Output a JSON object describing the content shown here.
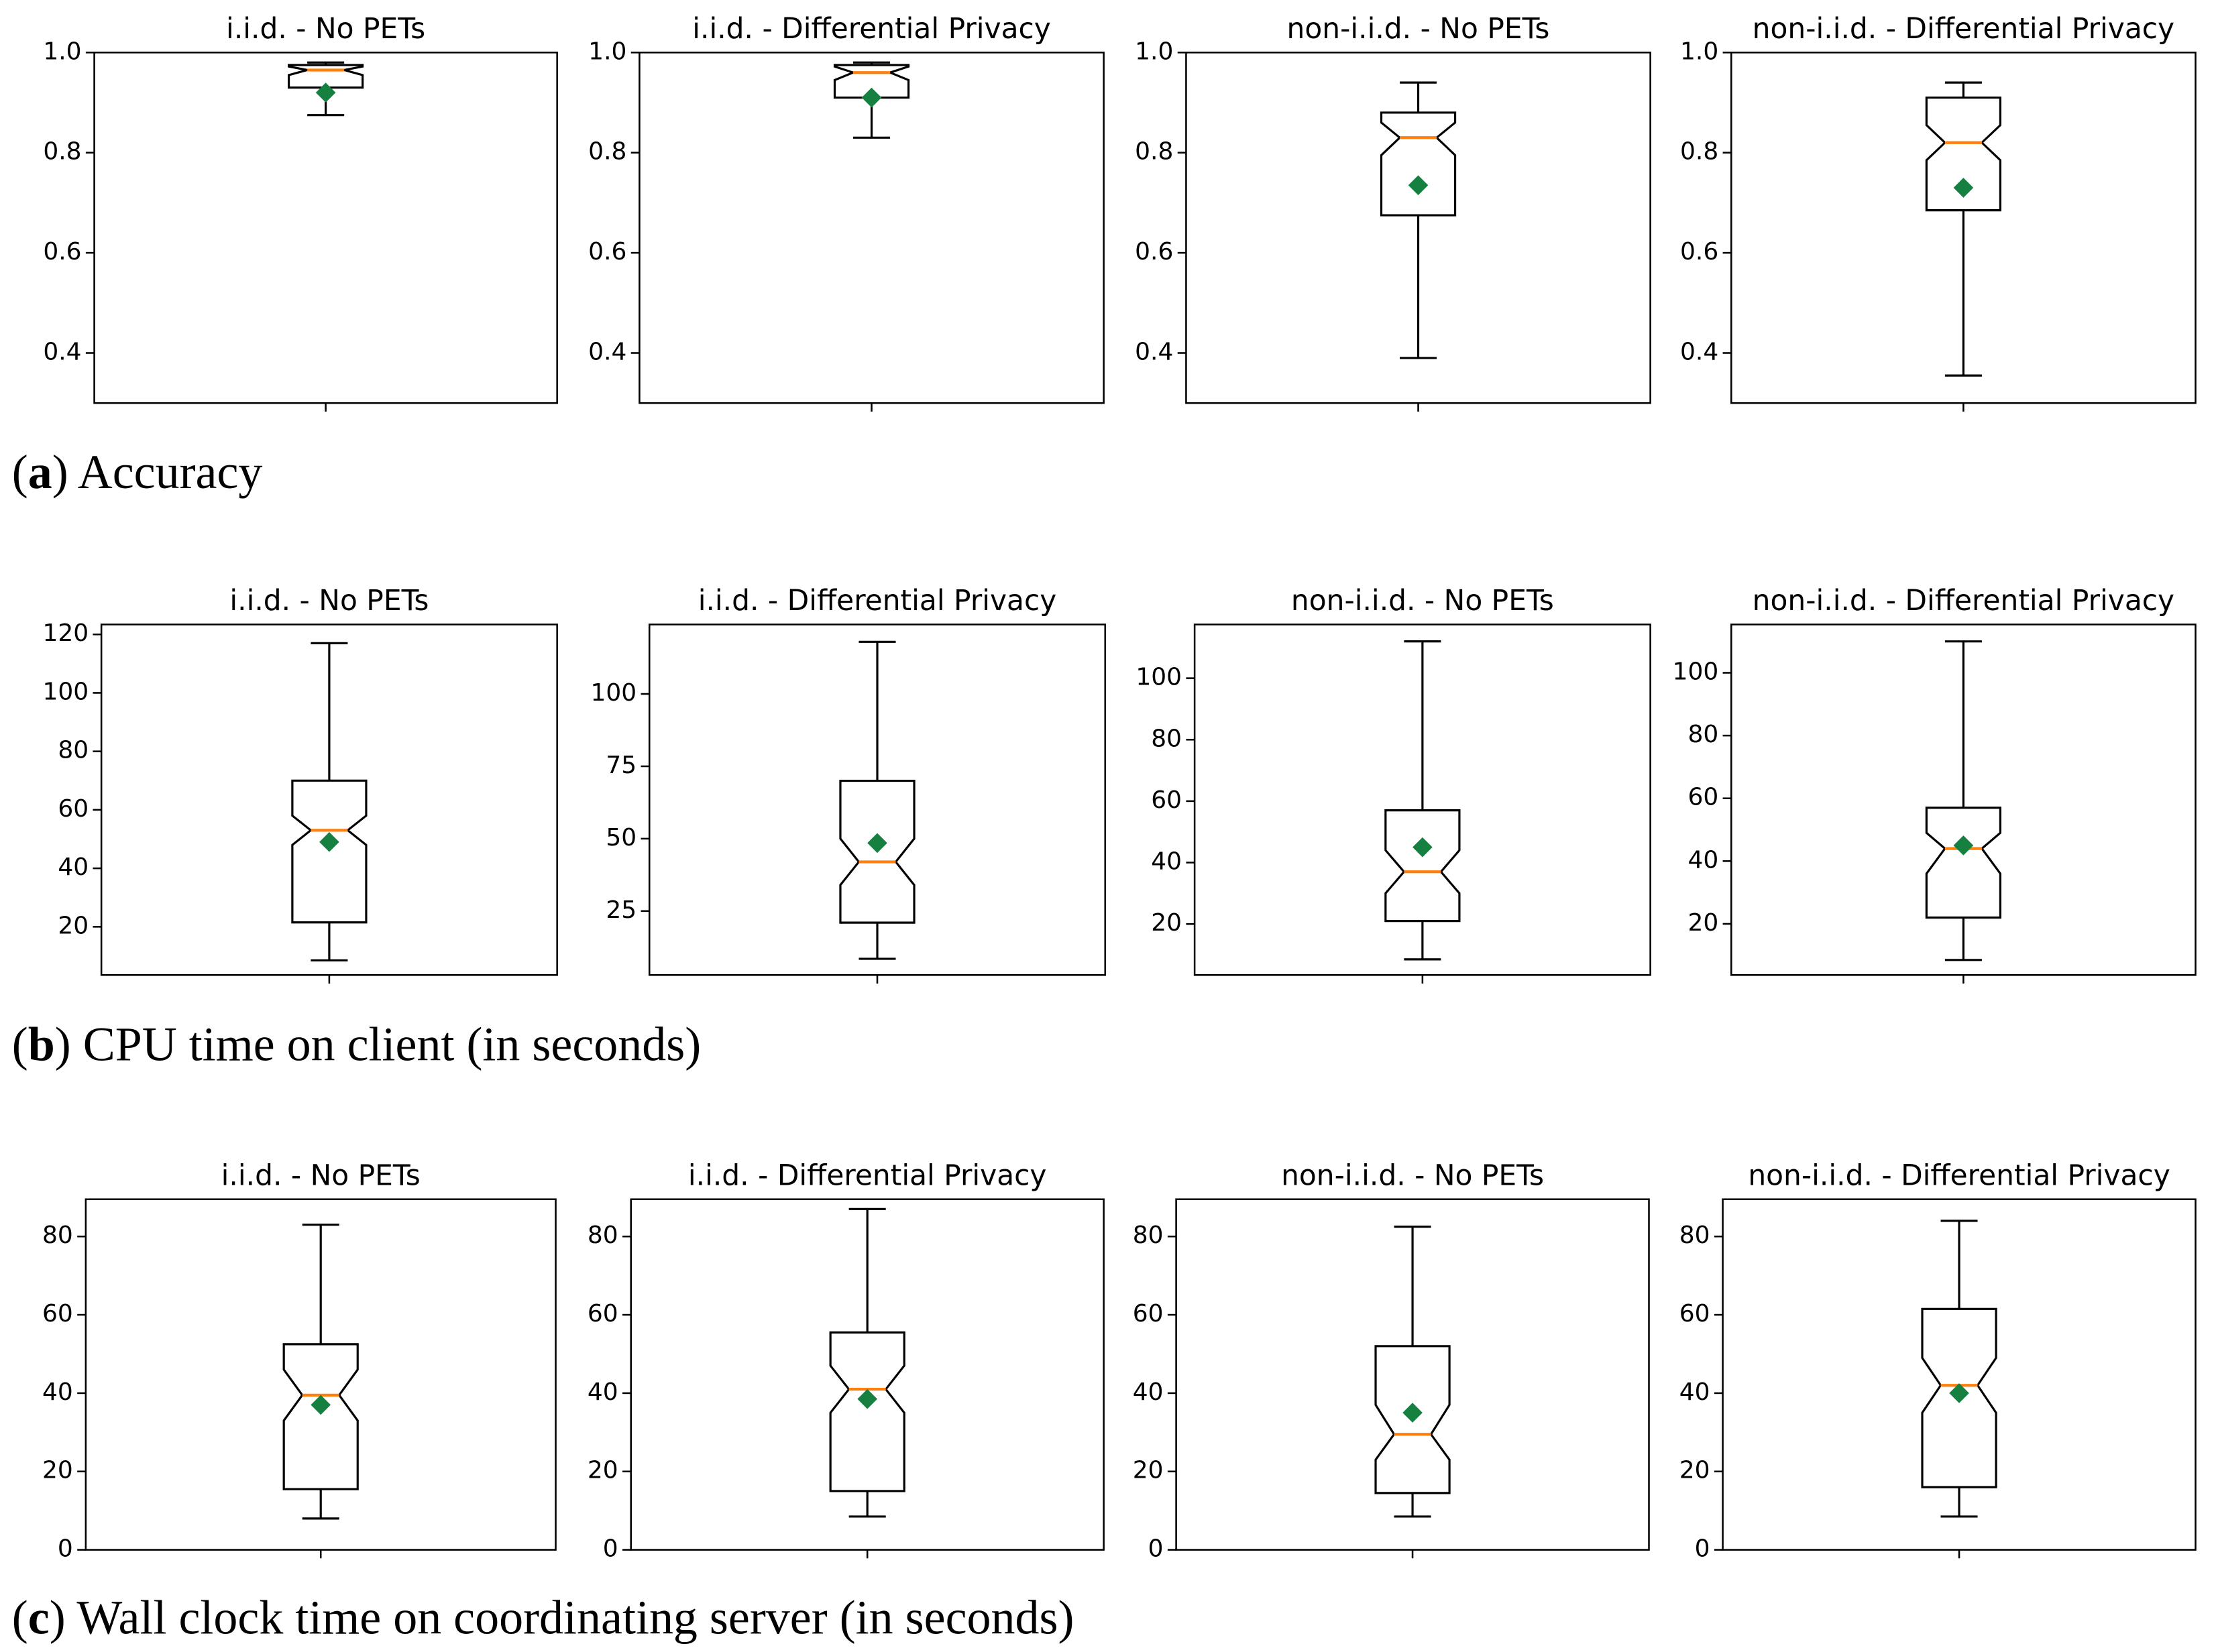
{
  "chart_data": [
    {
      "type": "box",
      "title": "i.i.d. - No PETs",
      "ylim": [
        0.3,
        1.0
      ],
      "yticks": [
        {
          "value": 0.4,
          "label": "0.4"
        },
        {
          "value": 0.6,
          "label": "0.6"
        },
        {
          "value": 0.8,
          "label": "0.8"
        },
        {
          "value": 1.0,
          "label": "1.0"
        }
      ],
      "whislo": 0.875,
      "q1": 0.93,
      "med": 0.965,
      "q3": 0.975,
      "whishi": 0.98,
      "notch": [
        0.955,
        0.972
      ],
      "mean": 0.92,
      "median_color": "#ff7f0e",
      "mean_color": "#158040"
    },
    {
      "type": "box",
      "title": "i.i.d. - Differential Privacy",
      "ylim": [
        0.3,
        1.0
      ],
      "yticks": [
        {
          "value": 0.4,
          "label": "0.4"
        },
        {
          "value": 0.6,
          "label": "0.6"
        },
        {
          "value": 0.8,
          "label": "0.8"
        },
        {
          "value": 1.0,
          "label": "1.0"
        }
      ],
      "whislo": 0.83,
      "q1": 0.91,
      "med": 0.96,
      "q3": 0.975,
      "whishi": 0.98,
      "notch": [
        0.945,
        0.972
      ],
      "mean": 0.91,
      "median_color": "#ff7f0e",
      "mean_color": "#158040"
    },
    {
      "type": "box",
      "title": "non-i.i.d. - No PETs",
      "ylim": [
        0.3,
        1.0
      ],
      "yticks": [
        {
          "value": 0.4,
          "label": "0.4"
        },
        {
          "value": 0.6,
          "label": "0.6"
        },
        {
          "value": 0.8,
          "label": "0.8"
        },
        {
          "value": 1.0,
          "label": "1.0"
        }
      ],
      "whislo": 0.39,
      "q1": 0.675,
      "med": 0.83,
      "q3": 0.88,
      "whishi": 0.94,
      "notch": [
        0.795,
        0.86
      ],
      "mean": 0.735,
      "median_color": "#ff7f0e",
      "mean_color": "#158040"
    },
    {
      "type": "box",
      "title": "non-i.i.d. - Differential Privacy",
      "ylim": [
        0.3,
        1.0
      ],
      "yticks": [
        {
          "value": 0.4,
          "label": "0.4"
        },
        {
          "value": 0.6,
          "label": "0.6"
        },
        {
          "value": 0.8,
          "label": "0.8"
        },
        {
          "value": 1.0,
          "label": "1.0"
        }
      ],
      "whislo": 0.355,
      "q1": 0.685,
      "med": 0.82,
      "q3": 0.91,
      "whishi": 0.94,
      "notch": [
        0.785,
        0.855
      ],
      "mean": 0.73,
      "median_color": "#ff7f0e",
      "mean_color": "#158040"
    },
    {
      "type": "box",
      "title": "i.i.d. - No PETs",
      "ylim": [
        3.5,
        123.4
      ],
      "yticks": [
        20,
        40,
        60,
        80,
        100,
        120
      ],
      "whislo": 8.5,
      "q1": 21.5,
      "med": 53,
      "q3": 70,
      "whishi": 117,
      "notch": [
        48,
        58
      ],
      "mean": 49,
      "median_color": "#ff7f0e",
      "mean_color": "#158040"
    },
    {
      "type": "box",
      "title": "i.i.d. - Differential Privacy",
      "ylim": [
        2.9,
        124
      ],
      "yticks": [
        25,
        50,
        75,
        100
      ],
      "whislo": 8.5,
      "q1": 21,
      "med": 42,
      "q3": 70,
      "whishi": 118,
      "notch": [
        34,
        50
      ],
      "mean": 48.5,
      "median_color": "#ff7f0e",
      "mean_color": "#158040"
    },
    {
      "type": "box",
      "title": "non-i.i.d. - No PETs",
      "ylim": [
        3.4,
        117.5
      ],
      "yticks": [
        20,
        40,
        60,
        80,
        100
      ],
      "whislo": 8.5,
      "q1": 21,
      "med": 37,
      "q3": 57,
      "whishi": 112,
      "notch": [
        30,
        44
      ],
      "mean": 45,
      "median_color": "#ff7f0e",
      "mean_color": "#158040"
    },
    {
      "type": "box",
      "title": "non-i.i.d. - Differential Privacy",
      "ylim": [
        3.7,
        115.4
      ],
      "yticks": [
        20,
        40,
        60,
        80,
        100
      ],
      "whislo": 8.5,
      "q1": 22,
      "med": 44,
      "q3": 57,
      "whishi": 110,
      "notch": [
        36,
        49
      ],
      "mean": 45,
      "median_color": "#ff7f0e",
      "mean_color": "#158040"
    },
    {
      "type": "box",
      "title": "i.i.d. - No PETs",
      "ylim": [
        0,
        89.5
      ],
      "yticks": [
        0,
        20,
        40,
        60,
        80
      ],
      "whislo": 8,
      "q1": 15.5,
      "med": 39.5,
      "q3": 52.5,
      "whishi": 83,
      "notch": [
        33,
        46
      ],
      "mean": 37,
      "median_color": "#ff7f0e",
      "mean_color": "#158040"
    },
    {
      "type": "box",
      "title": "i.i.d. - Differential Privacy",
      "ylim": [
        0,
        89.5
      ],
      "yticks": [
        0,
        20,
        40,
        60,
        80
      ],
      "whislo": 8.5,
      "q1": 15,
      "med": 41,
      "q3": 55.5,
      "whishi": 87,
      "notch": [
        35,
        47
      ],
      "mean": 38.5,
      "median_color": "#ff7f0e",
      "mean_color": "#158040"
    },
    {
      "type": "box",
      "title": "non-i.i.d. - No PETs",
      "ylim": [
        0,
        89.5
      ],
      "yticks": [
        0,
        20,
        40,
        60,
        80
      ],
      "whislo": 8.5,
      "q1": 14.5,
      "med": 29.5,
      "q3": 52,
      "whishi": 82.5,
      "notch": [
        23,
        37
      ],
      "mean": 35,
      "median_color": "#ff7f0e",
      "mean_color": "#158040"
    },
    {
      "type": "box",
      "title": "non-i.i.d. - Differential Privacy",
      "ylim": [
        0,
        89.5
      ],
      "yticks": [
        0,
        20,
        40,
        60,
        80
      ],
      "whislo": 8.5,
      "q1": 16,
      "med": 42,
      "q3": 61.5,
      "whishi": 84,
      "notch": [
        35,
        49
      ],
      "mean": 40,
      "median_color": "#ff7f0e",
      "mean_color": "#158040"
    }
  ],
  "captions": [
    {
      "text_parts": [
        "(",
        "a",
        ") Accuracy"
      ]
    },
    {
      "text_parts": [
        "(",
        "b",
        ") CPU time on client (in seconds)"
      ]
    },
    {
      "text_parts": [
        "(",
        "c",
        ") Wall clock time on coordinating server (in seconds)"
      ]
    }
  ]
}
